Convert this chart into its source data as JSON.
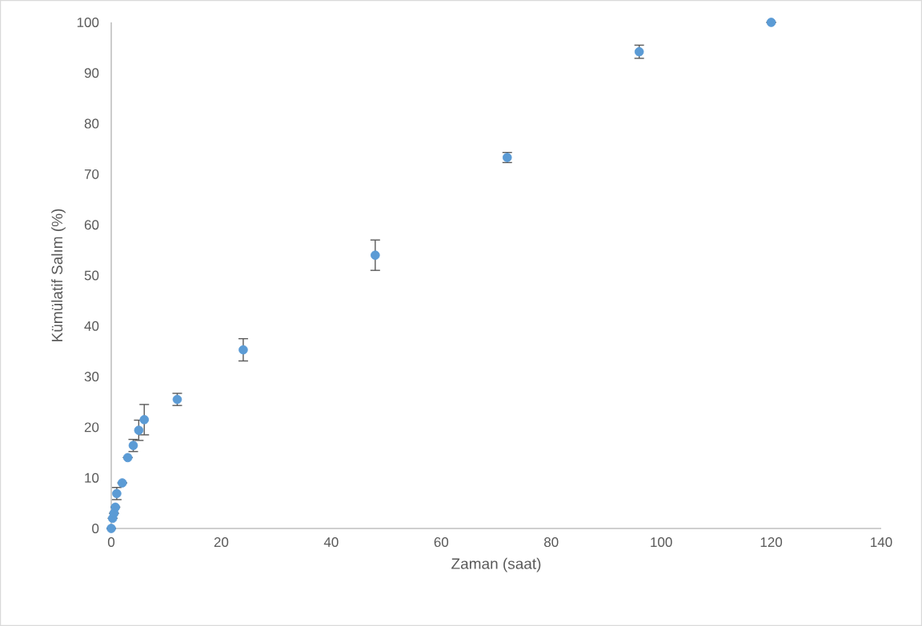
{
  "chart_data": {
    "type": "scatter",
    "xlabel": "Zaman (saat)",
    "ylabel": "Kümülatif Salım (%)",
    "x": [
      0,
      0.25,
      0.5,
      0.75,
      1,
      2,
      3,
      4,
      5,
      6,
      12,
      24,
      48,
      72,
      96,
      120
    ],
    "values": [
      0,
      2,
      3,
      4.2,
      6.9,
      9,
      14,
      16.4,
      19.4,
      21.5,
      25.5,
      35.3,
      54,
      73.3,
      94.2,
      100
    ],
    "errors": [
      null,
      null,
      null,
      null,
      1.2,
      null,
      null,
      1.2,
      2,
      3,
      1.2,
      2.2,
      3,
      1,
      1.3,
      null
    ],
    "color": "#5b9bd5",
    "marker": "circle",
    "xlim": [
      0,
      140
    ],
    "xticks": [
      0,
      20,
      40,
      60,
      80,
      100,
      120,
      140
    ],
    "ylim": [
      0,
      100
    ],
    "yticks": [
      0,
      10,
      20,
      30,
      40,
      50,
      60,
      70,
      80,
      90,
      100
    ],
    "grid": false
  }
}
